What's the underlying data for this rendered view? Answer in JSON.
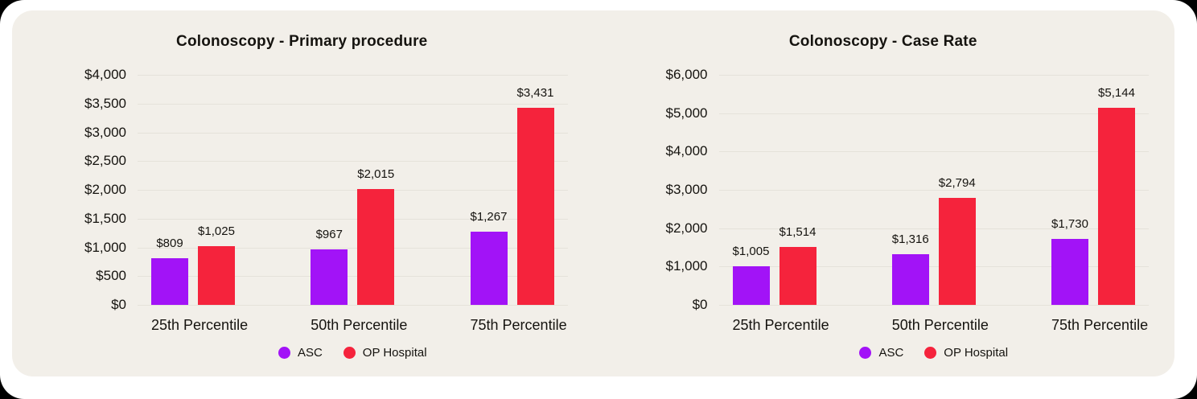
{
  "page": {
    "background": "#ffffff",
    "card_background": "#f2efe9",
    "gridline_color": "#e5e2da",
    "text_color": "#15130f"
  },
  "legend": {
    "items": [
      {
        "label": "ASC",
        "color": "#a213f7"
      },
      {
        "label": "OP Hospital",
        "color": "#f5233c"
      }
    ]
  },
  "chart_data": [
    {
      "type": "bar",
      "title": "Colonoscopy - Primary procedure",
      "categories": [
        "25th Percentile",
        "50th Percentile",
        "75th Percentile"
      ],
      "series": [
        {
          "name": "ASC",
          "color": "#a213f7",
          "values": [
            809,
            967,
            1267
          ],
          "labels": [
            "$809",
            "$967",
            "$1,267"
          ]
        },
        {
          "name": "OP Hospital",
          "color": "#f5233c",
          "values": [
            1025,
            2015,
            3431
          ],
          "labels": [
            "$1,025",
            "$2,015",
            "$3,431"
          ]
        }
      ],
      "xlabel": "",
      "ylabel": "",
      "ylim": [
        0,
        4000
      ],
      "yticks": [
        "$4,000",
        "$3,500",
        "$3,000",
        "$2,500",
        "$2,000",
        "$1,500",
        "$1,000",
        "$500",
        "$0"
      ],
      "grid": true,
      "legend_position": "bottom",
      "legend": [
        "ASC",
        "OP Hospital"
      ]
    },
    {
      "type": "bar",
      "title": "Colonoscopy - Case Rate",
      "categories": [
        "25th Percentile",
        "50th Percentile",
        "75th Percentile"
      ],
      "series": [
        {
          "name": "ASC",
          "color": "#a213f7",
          "values": [
            1005,
            1316,
            1730
          ],
          "labels": [
            "$1,005",
            "$1,316",
            "$1,730"
          ]
        },
        {
          "name": "OP Hospital",
          "color": "#f5233c",
          "values": [
            1514,
            2794,
            5144
          ],
          "labels": [
            "$1,514",
            "$2,794",
            "$5,144"
          ]
        }
      ],
      "xlabel": "",
      "ylabel": "",
      "ylim": [
        0,
        6000
      ],
      "yticks": [
        "$6,000",
        "$5,000",
        "$4,000",
        "$3,000",
        "$2,000",
        "$1,000",
        "$0"
      ],
      "grid": true,
      "legend_position": "bottom",
      "legend": [
        "ASC",
        "OP Hospital"
      ]
    }
  ]
}
